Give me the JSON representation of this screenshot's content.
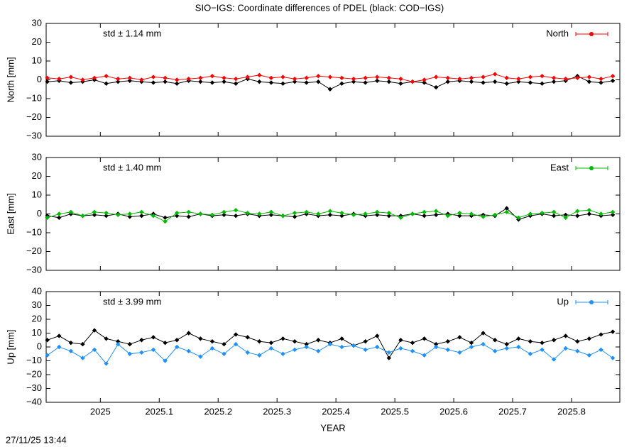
{
  "title": "SIO−IGS: Coordinate differences of PDEL (black: COD−IGS)",
  "footer": "27/11/25 13:44",
  "chart_data": [
    {
      "type": "line",
      "ylabel": "North [mm]",
      "annotation": "std ± 1.14 mm",
      "x": [
        2024.91,
        2024.93,
        2024.95,
        2024.97,
        2024.99,
        2025.01,
        2025.03,
        2025.05,
        2025.07,
        2025.09,
        2025.11,
        2025.13,
        2025.15,
        2025.17,
        2025.19,
        2025.21,
        2025.23,
        2025.25,
        2025.27,
        2025.29,
        2025.31,
        2025.33,
        2025.35,
        2025.37,
        2025.39,
        2025.41,
        2025.43,
        2025.45,
        2025.47,
        2025.49,
        2025.51,
        2025.53,
        2025.55,
        2025.57,
        2025.59,
        2025.61,
        2025.63,
        2025.65,
        2025.67,
        2025.69,
        2025.71,
        2025.73,
        2025.75,
        2025.77,
        2025.79,
        2025.81,
        2025.83,
        2025.85,
        2025.87
      ],
      "xlim": [
        2024.908,
        2025.882
      ],
      "ylim": [
        -30,
        30
      ],
      "yticks": [
        {
          "value": -30,
          "label": "−30"
        },
        {
          "value": -20,
          "label": "−20"
        },
        {
          "value": -10,
          "label": "−10"
        },
        0,
        10,
        20,
        30
      ],
      "series": [
        {
          "name": "North",
          "color": "#ff0000",
          "values": [
            1,
            0.5,
            1.5,
            0,
            1,
            2,
            0.5,
            1,
            0,
            1.5,
            1,
            0,
            0.5,
            1,
            2,
            1,
            0.5,
            1.5,
            2.5,
            1,
            1.5,
            0.5,
            1,
            2,
            1.5,
            1,
            0.5,
            1,
            1.5,
            1,
            0.5,
            -1,
            0,
            1.5,
            1,
            0.5,
            1,
            1.5,
            3,
            1,
            0.5,
            1.5,
            2,
            1,
            0.5,
            1,
            1.5,
            0.5,
            2
          ]
        },
        {
          "color": "#000000",
          "values": [
            -1,
            -0.5,
            -1.5,
            -1,
            0,
            -2,
            -1,
            -0.5,
            -1,
            -1.5,
            -1,
            -2,
            -0.5,
            -1,
            -1.5,
            -1,
            -2,
            0.5,
            -1,
            -1.5,
            -2,
            -1,
            -1.5,
            -1,
            -5,
            -2,
            -1,
            -1.5,
            -0.5,
            -1,
            -2,
            -1,
            -1.5,
            -4,
            -1,
            -0.5,
            -1,
            -1.5,
            -1,
            -2,
            -1,
            -1.5,
            -2,
            -1,
            -0.5,
            2,
            -1,
            -1.5,
            -0.5
          ]
        }
      ]
    },
    {
      "type": "line",
      "ylabel": "East [mm]",
      "annotation": "std ± 1.40 mm",
      "x": [
        2024.91,
        2024.93,
        2024.95,
        2024.97,
        2024.99,
        2025.01,
        2025.03,
        2025.05,
        2025.07,
        2025.09,
        2025.11,
        2025.13,
        2025.15,
        2025.17,
        2025.19,
        2025.21,
        2025.23,
        2025.25,
        2025.27,
        2025.29,
        2025.31,
        2025.33,
        2025.35,
        2025.37,
        2025.39,
        2025.41,
        2025.43,
        2025.45,
        2025.47,
        2025.49,
        2025.51,
        2025.53,
        2025.55,
        2025.57,
        2025.59,
        2025.61,
        2025.63,
        2025.65,
        2025.67,
        2025.69,
        2025.71,
        2025.73,
        2025.75,
        2025.77,
        2025.79,
        2025.81,
        2025.83,
        2025.85,
        2025.87
      ],
      "xlim": [
        2024.908,
        2025.882
      ],
      "ylim": [
        -30,
        30
      ],
      "yticks": [
        {
          "value": -30,
          "label": "−30"
        },
        {
          "value": -20,
          "label": "−20"
        },
        {
          "value": -10,
          "label": "−10"
        },
        0,
        10,
        20,
        30
      ],
      "series": [
        {
          "name": "East",
          "color": "#00bb00",
          "values": [
            -2,
            0,
            1,
            -1,
            1,
            0.5,
            -0.5,
            0,
            1,
            -1,
            -4,
            0.5,
            1,
            0,
            -0.5,
            1,
            2,
            0.5,
            0,
            1,
            -1,
            0.5,
            1,
            0,
            1.5,
            0.5,
            -0.5,
            0,
            1,
            0.5,
            -2,
            0,
            1,
            1.5,
            -1,
            0.5,
            0,
            -1.5,
            -0.5,
            1,
            -2,
            0,
            0.5,
            1,
            -2,
            1.5,
            2,
            0,
            1
          ]
        },
        {
          "color": "#000000",
          "values": [
            -1,
            -2,
            0,
            -1,
            -0.5,
            -1,
            0,
            -1.5,
            -1,
            0,
            -2,
            -1,
            -1.5,
            0,
            -1,
            -0.5,
            -1,
            0,
            -1,
            -0.5,
            -1,
            -1.5,
            0,
            -1,
            -0.5,
            -1,
            0,
            -1,
            -0.5,
            -1,
            -1,
            0,
            -1,
            -0.5,
            0,
            -1,
            -1,
            -0.5,
            -1,
            3,
            -3,
            -1,
            0,
            -1,
            -0.5,
            -1,
            0,
            -1,
            -0.5
          ]
        }
      ]
    },
    {
      "type": "line",
      "ylabel": "Up [mm]",
      "annotation": "std ± 3.99 mm",
      "xlabel": "YEAR",
      "x": [
        2024.91,
        2024.93,
        2024.95,
        2024.97,
        2024.99,
        2025.01,
        2025.03,
        2025.05,
        2025.07,
        2025.09,
        2025.11,
        2025.13,
        2025.15,
        2025.17,
        2025.19,
        2025.21,
        2025.23,
        2025.25,
        2025.27,
        2025.29,
        2025.31,
        2025.33,
        2025.35,
        2025.37,
        2025.39,
        2025.41,
        2025.43,
        2025.45,
        2025.47,
        2025.49,
        2025.51,
        2025.53,
        2025.55,
        2025.57,
        2025.59,
        2025.61,
        2025.63,
        2025.65,
        2025.67,
        2025.69,
        2025.71,
        2025.73,
        2025.75,
        2025.77,
        2025.79,
        2025.81,
        2025.83,
        2025.85,
        2025.87
      ],
      "xlim": [
        2024.908,
        2025.882
      ],
      "xticks": [
        2025,
        2025.1,
        2025.2,
        2025.3,
        2025.4,
        2025.5,
        2025.6,
        2025.7,
        2025.8
      ],
      "ylim": [
        -40,
        40
      ],
      "yticks": [
        {
          "value": -40,
          "label": "−40"
        },
        {
          "value": -30,
          "label": "−30"
        },
        {
          "value": -20,
          "label": "−20"
        },
        {
          "value": -10,
          "label": "−10"
        },
        0,
        10,
        20,
        30,
        40
      ],
      "series": [
        {
          "name": "Up",
          "color": "#1e90ff",
          "values": [
            -6,
            0,
            -3,
            -8,
            -2,
            -12,
            2,
            -5,
            -4,
            -2,
            -10,
            0,
            -3,
            -7,
            -1,
            -5,
            2,
            -4,
            -6,
            -1,
            -5,
            -2,
            0,
            -3,
            2,
            0,
            1,
            -2,
            0,
            -4,
            -1,
            -3,
            -6,
            0,
            -2,
            -4,
            0,
            2,
            -3,
            -1,
            0,
            -5,
            -2,
            -9,
            -1,
            -3,
            -6,
            -2,
            -8
          ]
        },
        {
          "color": "#000000",
          "values": [
            5,
            8,
            3,
            2,
            12,
            6,
            4,
            2,
            5,
            7,
            3,
            5,
            10,
            6,
            4,
            2,
            9,
            7,
            4,
            3,
            6,
            4,
            2,
            5,
            3,
            6,
            1,
            4,
            8,
            -8,
            5,
            3,
            6,
            2,
            4,
            7,
            3,
            10,
            5,
            2,
            6,
            4,
            3,
            5,
            8,
            4,
            6,
            9,
            11
          ]
        }
      ]
    }
  ]
}
